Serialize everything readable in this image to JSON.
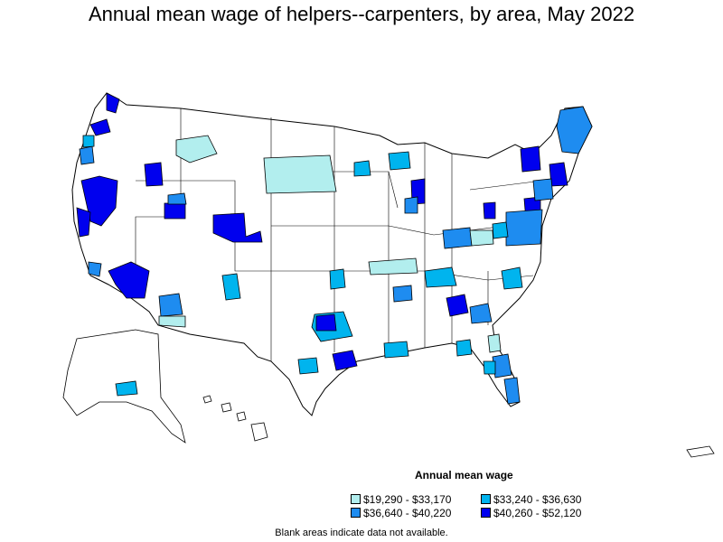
{
  "title": "Annual mean wage of helpers--carpenters, by area, May 2022",
  "legend": {
    "title": "Annual mean wage",
    "items": [
      {
        "label": "$19,290 - $33,170",
        "color": "#b2eeee"
      },
      {
        "label": "$33,240 - $36,630",
        "color": "#00b4ee"
      },
      {
        "label": "$36,640 - $40,220",
        "color": "#1e8cf0"
      },
      {
        "label": "$40,260 - $52,120",
        "color": "#0000ee"
      }
    ]
  },
  "note": "Blank areas indicate data not available.",
  "colors": {
    "outline": "#000000",
    "no_data": "#ffffff"
  }
}
